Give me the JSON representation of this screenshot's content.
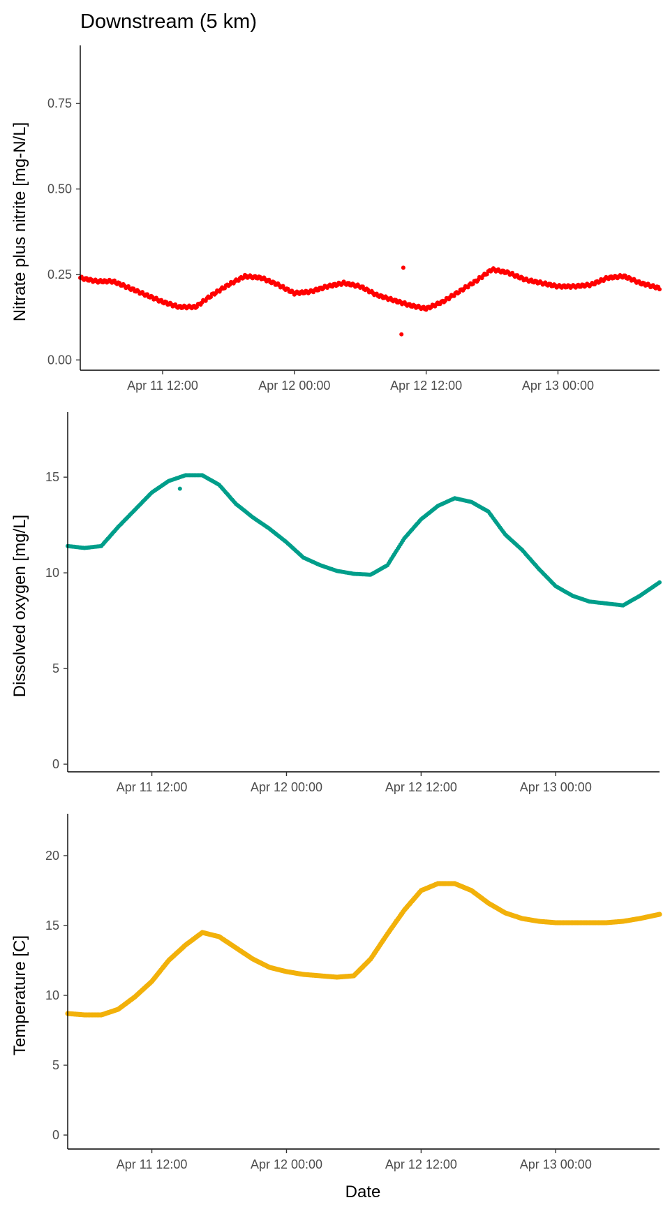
{
  "figure": {
    "title": "Downstream (5 km)",
    "xlabel": "Date"
  },
  "chart_data": [
    {
      "type": "scatter",
      "ylabel": "Nitrate plus nitrite [mg-N/L]",
      "ylim": [
        -0.03,
        0.92
      ],
      "yticks": [
        0.0,
        0.25,
        0.5,
        0.75
      ],
      "ytick_labels": [
        "0.00",
        "0.25",
        "0.50",
        "0.75"
      ],
      "xlim": [
        "2024-04-11 04:30",
        "2024-04-13 09:15"
      ],
      "xticks": [
        "Apr 11 12:00",
        "Apr 12 00:00",
        "Apr 12 12:00",
        "Apr 13 00:00"
      ],
      "grid": false,
      "color": "#ff0000",
      "series": [
        {
          "x": [
            "2024-04-11 04:30",
            "2024-04-11 06:00",
            "2024-04-11 07:30",
            "2024-04-11 09:00",
            "2024-04-11 10:30",
            "2024-04-11 12:00",
            "2024-04-11 13:30",
            "2024-04-11 15:00",
            "2024-04-11 16:30",
            "2024-04-11 18:00",
            "2024-04-11 19:30",
            "2024-04-11 21:00",
            "2024-04-11 22:30",
            "2024-04-12 00:00",
            "2024-04-12 01:30",
            "2024-04-12 03:00",
            "2024-04-12 04:30",
            "2024-04-12 06:00",
            "2024-04-12 07:30",
            "2024-04-12 09:00",
            "2024-04-12 10:30",
            "2024-04-12 12:00",
            "2024-04-12 13:30",
            "2024-04-12 15:00",
            "2024-04-12 16:30",
            "2024-04-12 18:00",
            "2024-04-12 19:30",
            "2024-04-12 21:00",
            "2024-04-12 22:30",
            "2024-04-13 00:00",
            "2024-04-13 01:30",
            "2024-04-13 03:00",
            "2024-04-13 04:30",
            "2024-04-13 06:00",
            "2024-04-13 07:30",
            "2024-04-13 09:15"
          ],
          "y": [
            0.24,
            0.23,
            0.23,
            0.21,
            0.19,
            0.17,
            0.155,
            0.155,
            0.19,
            0.22,
            0.245,
            0.24,
            0.22,
            0.195,
            0.2,
            0.215,
            0.225,
            0.215,
            0.19,
            0.175,
            0.16,
            0.15,
            0.17,
            0.2,
            0.23,
            0.265,
            0.255,
            0.235,
            0.225,
            0.215,
            0.215,
            0.22,
            0.24,
            0.245,
            0.225,
            0.21
          ]
        },
        {
          "x": [
            "2024-04-12 09:45",
            "2024-04-12 09:55"
          ],
          "y": [
            0.075,
            0.27
          ]
        }
      ]
    },
    {
      "type": "scatter",
      "ylabel": "Dissolved oxygen [mg/L]",
      "ylim": [
        -0.4,
        18.4
      ],
      "yticks": [
        0,
        5,
        10,
        15
      ],
      "ytick_labels": [
        "0",
        "5",
        "10",
        "15"
      ],
      "xlim": [
        "2024-04-11 04:30",
        "2024-04-13 09:15"
      ],
      "xticks": [
        "Apr 11 12:00",
        "Apr 12 00:00",
        "Apr 12 12:00",
        "Apr 13 00:00"
      ],
      "grid": false,
      "color": "#009e8a",
      "series": [
        {
          "x": [
            "2024-04-11 04:30",
            "2024-04-11 06:00",
            "2024-04-11 07:30",
            "2024-04-11 09:00",
            "2024-04-11 10:30",
            "2024-04-11 12:00",
            "2024-04-11 13:30",
            "2024-04-11 15:00",
            "2024-04-11 16:30",
            "2024-04-11 18:00",
            "2024-04-11 19:30",
            "2024-04-11 21:00",
            "2024-04-11 22:30",
            "2024-04-12 00:00",
            "2024-04-12 01:30",
            "2024-04-12 03:00",
            "2024-04-12 04:30",
            "2024-04-12 06:00",
            "2024-04-12 07:30",
            "2024-04-12 09:00",
            "2024-04-12 10:30",
            "2024-04-12 12:00",
            "2024-04-12 13:30",
            "2024-04-12 15:00",
            "2024-04-12 16:30",
            "2024-04-12 18:00",
            "2024-04-12 19:30",
            "2024-04-12 21:00",
            "2024-04-12 22:30",
            "2024-04-13 00:00",
            "2024-04-13 01:30",
            "2024-04-13 03:00",
            "2024-04-13 04:30",
            "2024-04-13 06:00",
            "2024-04-13 07:30",
            "2024-04-13 09:15"
          ],
          "y": [
            11.4,
            11.3,
            11.4,
            12.4,
            13.3,
            14.2,
            14.8,
            15.1,
            15.1,
            14.6,
            13.6,
            12.9,
            12.3,
            11.6,
            10.8,
            10.4,
            10.1,
            9.95,
            9.9,
            10.4,
            11.8,
            12.8,
            13.5,
            13.9,
            13.7,
            13.2,
            12.0,
            11.2,
            10.2,
            9.3,
            8.8,
            8.5,
            8.4,
            8.3,
            8.8,
            9.5
          ]
        },
        {
          "x": [
            "2024-04-11 14:30"
          ],
          "y": [
            14.4
          ]
        }
      ]
    },
    {
      "type": "scatter",
      "ylabel": "Temperature [C]",
      "ylim": [
        -1.0,
        23.0
      ],
      "yticks": [
        0,
        5,
        10,
        15,
        20
      ],
      "ytick_labels": [
        "0",
        "5",
        "10",
        "15",
        "20"
      ],
      "xlim": [
        "2024-04-11 04:30",
        "2024-04-13 09:15"
      ],
      "xticks": [
        "Apr 11 12:00",
        "Apr 12 00:00",
        "Apr 12 12:00",
        "Apr 13 00:00"
      ],
      "grid": false,
      "color": "#f2b10a",
      "series": [
        {
          "x": [
            "2024-04-11 04:30",
            "2024-04-11 06:00",
            "2024-04-11 07:30",
            "2024-04-11 09:00",
            "2024-04-11 10:30",
            "2024-04-11 12:00",
            "2024-04-11 13:30",
            "2024-04-11 15:00",
            "2024-04-11 16:30",
            "2024-04-11 18:00",
            "2024-04-11 19:30",
            "2024-04-11 21:00",
            "2024-04-11 22:30",
            "2024-04-12 00:00",
            "2024-04-12 01:30",
            "2024-04-12 03:00",
            "2024-04-12 04:30",
            "2024-04-12 06:00",
            "2024-04-12 07:30",
            "2024-04-12 09:00",
            "2024-04-12 10:30",
            "2024-04-12 12:00",
            "2024-04-12 13:30",
            "2024-04-12 15:00",
            "2024-04-12 16:30",
            "2024-04-12 18:00",
            "2024-04-12 19:30",
            "2024-04-12 21:00",
            "2024-04-12 22:30",
            "2024-04-13 00:00",
            "2024-04-13 01:30",
            "2024-04-13 03:00",
            "2024-04-13 04:30",
            "2024-04-13 06:00",
            "2024-04-13 07:30",
            "2024-04-13 09:15"
          ],
          "y": [
            8.7,
            8.6,
            8.6,
            9.0,
            9.9,
            11.0,
            12.5,
            13.6,
            14.5,
            14.2,
            13.4,
            12.6,
            12.0,
            11.7,
            11.5,
            11.4,
            11.3,
            11.4,
            12.6,
            14.4,
            16.1,
            17.5,
            18.0,
            18.0,
            17.5,
            16.6,
            15.9,
            15.5,
            15.3,
            15.2,
            15.2,
            15.2,
            15.2,
            15.3,
            15.5,
            15.8
          ]
        }
      ]
    }
  ]
}
